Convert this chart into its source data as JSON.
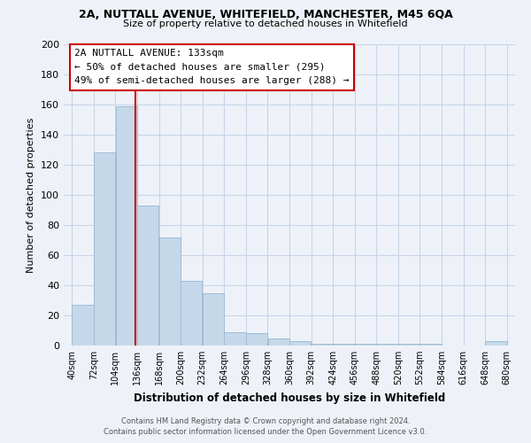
{
  "title1": "2A, NUTTALL AVENUE, WHITEFIELD, MANCHESTER, M45 6QA",
  "title2": "Size of property relative to detached houses in Whitefield",
  "xlabel": "Distribution of detached houses by size in Whitefield",
  "ylabel": "Number of detached properties",
  "bar_edges": [
    40,
    72,
    104,
    136,
    168,
    200,
    232,
    264,
    296,
    328,
    360,
    392,
    424,
    456,
    488,
    520,
    552,
    584,
    616,
    648,
    680
  ],
  "bar_heights": [
    27,
    128,
    159,
    93,
    72,
    43,
    35,
    9,
    8,
    5,
    3,
    1,
    1,
    1,
    1,
    1,
    1,
    0,
    0,
    3
  ],
  "bar_color": "#c5d8ea",
  "bar_edge_color": "#a0bcd4",
  "vline_x": 133,
  "vline_color": "#cc0000",
  "annotation_title": "2A NUTTALL AVENUE: 133sqm",
  "annotation_line1": "← 50% of detached houses are smaller (295)",
  "annotation_line2": "49% of semi-detached houses are larger (288) →",
  "annotation_box_facecolor": "#ffffff",
  "annotation_box_edgecolor": "#cc0000",
  "ylim": [
    0,
    200
  ],
  "yticks": [
    0,
    20,
    40,
    60,
    80,
    100,
    120,
    140,
    160,
    180,
    200
  ],
  "grid_color": "#c8d4e8",
  "footer1": "Contains HM Land Registry data © Crown copyright and database right 2024.",
  "footer2": "Contains public sector information licensed under the Open Government Licence v3.0.",
  "bg_color": "#eef2f8"
}
